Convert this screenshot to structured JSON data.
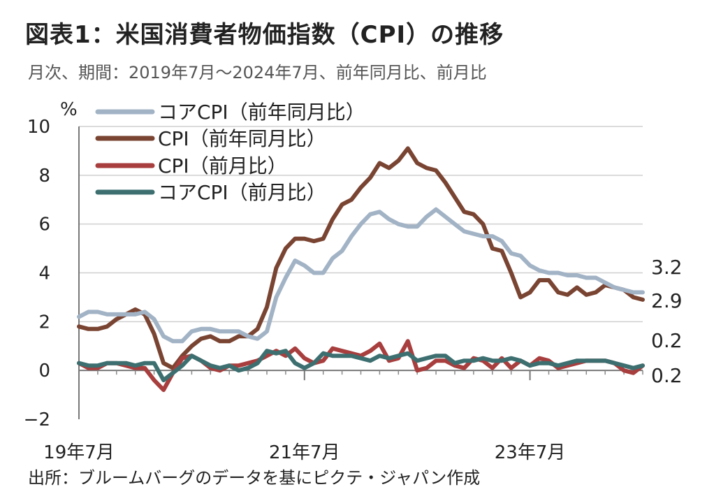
{
  "header": {
    "title": "図表1：米国消費者物価指数（CPI）の推移",
    "subtitle": "月次、期間：2019年7月～2024年7月、前年同月比、前月比"
  },
  "footer": {
    "source": "出所：ブルームバーグのデータを基にピクテ・ジャパン作成"
  },
  "chart_data": {
    "type": "line",
    "ylabel": "%",
    "ylim": [
      -2,
      10
    ],
    "yticks": [
      -2,
      0,
      2,
      4,
      6,
      8,
      10
    ],
    "x_tick_labels": [
      {
        "label": "19年7月",
        "index": 0
      },
      {
        "label": "21年7月",
        "index": 24
      },
      {
        "label": "23年7月",
        "index": 48
      }
    ],
    "x_count": 61,
    "grid": "horizontal",
    "legend_position": "top-left",
    "series": [
      {
        "name": "コアCPI（前年同月比）",
        "color": "#a2b3c6",
        "end_label": "3.2",
        "values": [
          2.2,
          2.4,
          2.4,
          2.3,
          2.3,
          2.3,
          2.3,
          2.4,
          2.1,
          1.4,
          1.2,
          1.2,
          1.6,
          1.7,
          1.7,
          1.6,
          1.6,
          1.6,
          1.4,
          1.3,
          1.6,
          3.0,
          3.8,
          4.5,
          4.3,
          4.0,
          4.0,
          4.6,
          4.9,
          5.5,
          6.0,
          6.4,
          6.5,
          6.2,
          6.0,
          5.9,
          5.9,
          6.3,
          6.6,
          6.3,
          6.0,
          5.7,
          5.6,
          5.5,
          5.5,
          5.3,
          4.8,
          4.7,
          4.3,
          4.1,
          4.0,
          4.0,
          3.9,
          3.9,
          3.8,
          3.8,
          3.6,
          3.4,
          3.3,
          3.2,
          3.2
        ]
      },
      {
        "name": "CPI（前年同月比）",
        "color": "#7a4432",
        "end_label": "2.9",
        "values": [
          1.8,
          1.7,
          1.7,
          1.8,
          2.1,
          2.3,
          2.5,
          2.3,
          1.5,
          0.3,
          0.1,
          0.6,
          1.0,
          1.3,
          1.4,
          1.2,
          1.2,
          1.4,
          1.4,
          1.7,
          2.6,
          4.2,
          5.0,
          5.4,
          5.4,
          5.3,
          5.4,
          6.2,
          6.8,
          7.0,
          7.5,
          7.9,
          8.5,
          8.3,
          8.6,
          9.1,
          8.5,
          8.3,
          8.2,
          7.7,
          7.1,
          6.5,
          6.4,
          6.0,
          5.0,
          4.9,
          4.0,
          3.0,
          3.2,
          3.7,
          3.7,
          3.2,
          3.1,
          3.4,
          3.1,
          3.2,
          3.5,
          3.4,
          3.3,
          3.0,
          2.9
        ]
      },
      {
        "name": "CPI（前月比）",
        "color": "#a83e3e",
        "end_label": "0.2",
        "values": [
          0.3,
          0.1,
          0.1,
          0.3,
          0.3,
          0.2,
          0.1,
          0.1,
          -0.4,
          -0.8,
          -0.1,
          0.5,
          0.6,
          0.4,
          0.1,
          0.0,
          0.2,
          0.2,
          0.3,
          0.4,
          0.6,
          0.8,
          0.6,
          0.9,
          0.5,
          0.3,
          0.4,
          0.9,
          0.8,
          0.7,
          0.6,
          0.8,
          1.1,
          0.4,
          0.5,
          1.2,
          0.0,
          0.1,
          0.4,
          0.4,
          0.2,
          0.1,
          0.5,
          0.4,
          0.1,
          0.5,
          0.1,
          0.4,
          0.2,
          0.5,
          0.4,
          0.1,
          0.2,
          0.3,
          0.4,
          0.4,
          0.4,
          0.3,
          0.0,
          -0.1,
          0.2
        ]
      },
      {
        "name": "コアCPI（前月比）",
        "color": "#3d6f70",
        "end_label": "0.2",
        "values": [
          0.3,
          0.2,
          0.2,
          0.3,
          0.3,
          0.3,
          0.2,
          0.3,
          0.3,
          -0.4,
          -0.1,
          0.2,
          0.6,
          0.4,
          0.2,
          0.1,
          0.2,
          0.0,
          0.1,
          0.3,
          0.8,
          0.7,
          0.8,
          0.3,
          0.1,
          0.3,
          0.7,
          0.6,
          0.6,
          0.6,
          0.5,
          0.4,
          0.6,
          0.5,
          0.6,
          0.7,
          0.4,
          0.5,
          0.6,
          0.6,
          0.3,
          0.4,
          0.4,
          0.5,
          0.4,
          0.4,
          0.5,
          0.4,
          0.2,
          0.3,
          0.3,
          0.2,
          0.3,
          0.4,
          0.4,
          0.4,
          0.4,
          0.3,
          0.2,
          0.1,
          0.2
        ]
      }
    ]
  }
}
